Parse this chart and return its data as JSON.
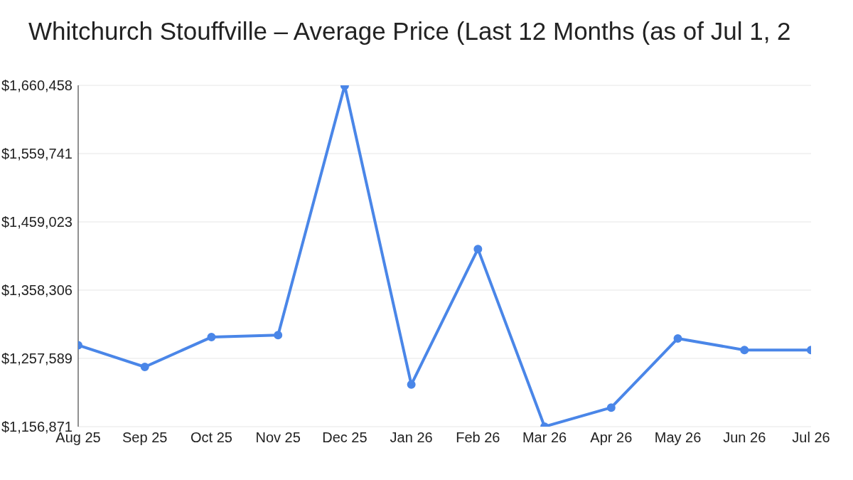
{
  "chart_data": {
    "type": "line",
    "title": "Whitchurch Stouffville – Average Price (Last 12 Months (as of Jul 1, 2",
    "categories": [
      "Aug 25",
      "Sep 25",
      "Oct 25",
      "Nov 25",
      "Dec 25",
      "Jan 26",
      "Feb 26",
      "Mar 26",
      "Apr 26",
      "May 26",
      "Jun 26",
      "Jul 26"
    ],
    "series": [
      {
        "color": "#4a86e8",
        "values": [
          1277000,
          1245000,
          1289000,
          1292000,
          1660000,
          1219000,
          1419000,
          1157000,
          1185000,
          1287000,
          1270000,
          1270000
        ]
      }
    ],
    "ylim": [
      1156871,
      1660458
    ],
    "yticks": [
      {
        "value": 1156871,
        "label": "$1,156,871"
      },
      {
        "value": 1257589,
        "label": "$1,257,589"
      },
      {
        "value": 1358306,
        "label": "$1,358,306"
      },
      {
        "value": 1459023,
        "label": "$1,459,023"
      },
      {
        "value": 1559741,
        "label": "$1,559,741"
      },
      {
        "value": 1660458,
        "label": "$1,660,458"
      }
    ],
    "grid": "y",
    "marker": "circle",
    "line_style": "solid"
  }
}
